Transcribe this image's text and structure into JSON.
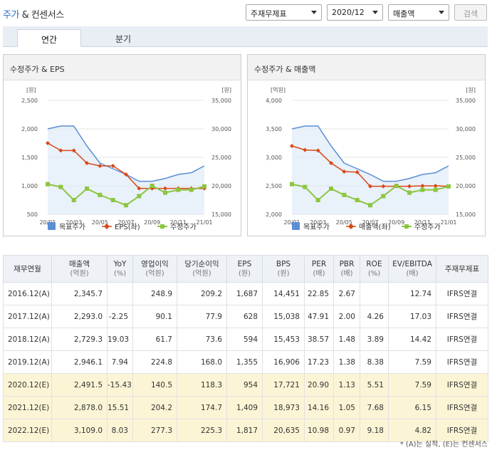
{
  "header": {
    "title_part1": "주가",
    "title_part2": "& 컨센서스",
    "select_report": "주재무제표",
    "select_period": "2020/12",
    "select_metric": "매출액",
    "search_label": "검색"
  },
  "tabs": [
    {
      "label": "연간",
      "active": true
    },
    {
      "label": "분기",
      "active": false
    }
  ],
  "colors": {
    "target_price": "#5b8ed6",
    "eps": "#d9481a",
    "adj_price": "#8cc63f",
    "estimate_row": "#fbf5d6"
  },
  "panels": [
    {
      "title": "수정주가 & EPS",
      "left_unit": "[원]",
      "right_unit": "[원]",
      "left_ticks": [
        "2,500",
        "2,000",
        "1,500",
        "1,000",
        "500"
      ],
      "right_ticks": [
        "35,000",
        "30,000",
        "25,000",
        "20,000",
        "15,000"
      ],
      "legend": [
        "목표주가",
        "EPS(좌)",
        "수정주가"
      ]
    },
    {
      "title": "수정주가 & 매출액",
      "left_unit": "[억원]",
      "right_unit": "[원]",
      "left_ticks": [
        "4,000",
        "3,500",
        "3,000",
        "2,500",
        "2,000"
      ],
      "right_ticks": [
        "35,000",
        "30,000",
        "25,000",
        "20,000",
        "15,000"
      ],
      "legend": [
        "목표주가",
        "매출액(좌)",
        "수정주가"
      ]
    }
  ],
  "chart_data": [
    {
      "type": "line",
      "title": "수정주가 & EPS",
      "x": [
        "20/01",
        "20/02",
        "20/03",
        "20/04",
        "20/05",
        "20/06",
        "20/07",
        "20/08",
        "20/09",
        "20/10",
        "20/11",
        "20/12",
        "21/01"
      ],
      "x_tick_labels": [
        "20/01",
        "20/03",
        "20/05",
        "20/07",
        "20/09",
        "20/11",
        "21/01"
      ],
      "ylim_left": [
        500,
        2500
      ],
      "ylim_right": [
        15000,
        35000
      ],
      "series": [
        {
          "name": "목표주가",
          "axis": "right",
          "values": [
            30000,
            30500,
            30500,
            27000,
            24000,
            23000,
            22000,
            20800,
            20800,
            21300,
            22000,
            22300,
            23500
          ]
        },
        {
          "name": "EPS(좌)",
          "axis": "left",
          "values": [
            1750,
            1620,
            1620,
            1400,
            1350,
            1350,
            1200,
            954,
            954,
            954,
            954,
            954,
            954
          ]
        },
        {
          "name": "수정주가",
          "axis": "right",
          "values": [
            20300,
            19800,
            17500,
            19500,
            18400,
            17500,
            16600,
            18200,
            20000,
            18800,
            19300,
            19300,
            19900
          ]
        }
      ],
      "legend_position": "bottom"
    },
    {
      "type": "line",
      "title": "수정주가 & 매출액",
      "x": [
        "20/01",
        "20/02",
        "20/03",
        "20/04",
        "20/05",
        "20/06",
        "20/07",
        "20/08",
        "20/09",
        "20/10",
        "20/11",
        "20/12",
        "21/01"
      ],
      "x_tick_labels": [
        "20/01",
        "20/03",
        "20/05",
        "20/07",
        "20/09",
        "20/11",
        "21/01"
      ],
      "ylim_left": [
        2000,
        4000
      ],
      "ylim_right": [
        15000,
        35000
      ],
      "series": [
        {
          "name": "목표주가",
          "axis": "right",
          "values": [
            30000,
            30500,
            30500,
            27000,
            24000,
            23000,
            22000,
            20800,
            20800,
            21300,
            22000,
            22300,
            23500
          ]
        },
        {
          "name": "매출액(좌)",
          "axis": "left",
          "values": [
            3200,
            3130,
            3120,
            2900,
            2750,
            2740,
            2491.5,
            2491.5,
            2491.5,
            2491.5,
            2500,
            2500,
            2491.5
          ]
        },
        {
          "name": "수정주가",
          "axis": "right",
          "values": [
            20300,
            19800,
            17500,
            19500,
            18400,
            17500,
            16600,
            18200,
            20000,
            18800,
            19300,
            19300,
            19900
          ]
        }
      ],
      "legend_position": "bottom"
    }
  ],
  "table": {
    "columns": [
      {
        "label": "재무연월",
        "unit": ""
      },
      {
        "label": "매출액",
        "unit": "(억원)"
      },
      {
        "label": "YoY",
        "unit": "(%)"
      },
      {
        "label": "영업이익",
        "unit": "(억원)"
      },
      {
        "label": "당기순이익",
        "unit": "(억원)"
      },
      {
        "label": "EPS",
        "unit": "(원)"
      },
      {
        "label": "BPS",
        "unit": "(원)"
      },
      {
        "label": "PER",
        "unit": "(배)"
      },
      {
        "label": "PBR",
        "unit": "(배)"
      },
      {
        "label": "ROE",
        "unit": "(%)"
      },
      {
        "label": "EV/EBITDA",
        "unit": "(배)"
      },
      {
        "label": "주재무제표",
        "unit": ""
      }
    ],
    "rows": [
      {
        "estimate": false,
        "cells": [
          "2016.12(A)",
          "2,345.7",
          "",
          "248.9",
          "209.2",
          "1,687",
          "14,451",
          "22.85",
          "2.67",
          "",
          "12.74",
          "IFRS연결"
        ]
      },
      {
        "estimate": false,
        "cells": [
          "2017.12(A)",
          "2,293.0",
          "-2.25",
          "90.1",
          "77.9",
          "628",
          "15,038",
          "47.91",
          "2.00",
          "4.26",
          "17.03",
          "IFRS연결"
        ]
      },
      {
        "estimate": false,
        "cells": [
          "2018.12(A)",
          "2,729.3",
          "19.03",
          "61.7",
          "73.6",
          "594",
          "15,453",
          "38.57",
          "1.48",
          "3.89",
          "14.42",
          "IFRS연결"
        ]
      },
      {
        "estimate": false,
        "cells": [
          "2019.12(A)",
          "2,946.1",
          "7.94",
          "224.8",
          "168.0",
          "1,355",
          "16,906",
          "17.23",
          "1.38",
          "8.38",
          "7.59",
          "IFRS연결"
        ]
      },
      {
        "estimate": true,
        "cells": [
          "2020.12(E)",
          "2,491.5",
          "-15.43",
          "140.5",
          "118.3",
          "954",
          "17,721",
          "20.90",
          "1.13",
          "5.51",
          "7.59",
          "IFRS연결"
        ]
      },
      {
        "estimate": true,
        "cells": [
          "2021.12(E)",
          "2,878.0",
          "15.51",
          "204.2",
          "174.7",
          "1,409",
          "18,973",
          "14.16",
          "1.05",
          "7.68",
          "6.15",
          "IFRS연결"
        ]
      },
      {
        "estimate": true,
        "cells": [
          "2022.12(E)",
          "3,109.0",
          "8.03",
          "277.3",
          "225.3",
          "1,817",
          "20,635",
          "10.98",
          "0.97",
          "9.18",
          "4.82",
          "IFRS연결"
        ]
      }
    ]
  },
  "footnote": "* (A)는 실적, (E)는 컨센서스"
}
